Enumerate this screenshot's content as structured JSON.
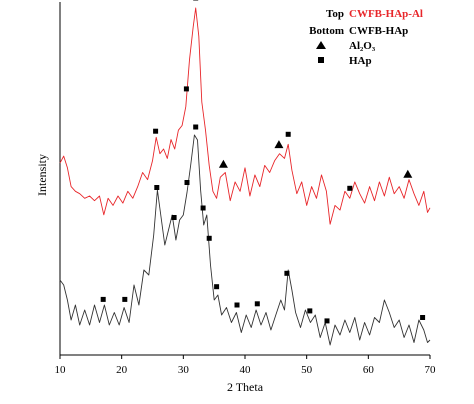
{
  "chart_data": {
    "type": "line",
    "xlabel": "2 Theta",
    "ylabel": "Intensity",
    "xlim": [
      10,
      70
    ],
    "x_ticks": [
      10,
      20,
      30,
      40,
      50,
      60,
      70
    ],
    "y_ticks_shown": false,
    "grid": false,
    "legend_position": "top-right",
    "colors": {
      "top": "#e8262a",
      "bottom": "#333333",
      "markers": "#000000"
    },
    "legend": {
      "rows": [
        {
          "label": "Top",
          "text": "CWFB-HAp-Al",
          "color": "#e8262a"
        },
        {
          "label": "Bottom",
          "text": "CWFB-HAp",
          "color": "#000000"
        }
      ],
      "markers": [
        {
          "symbol": "triangle",
          "text": "Al₂O₃"
        },
        {
          "symbol": "square",
          "text": "HAp"
        }
      ]
    },
    "series": [
      {
        "name": "CWFB-HAp-Al",
        "position": "top",
        "color": "#e8262a",
        "points": [
          [
            10,
            0.34
          ],
          [
            10.6,
            0.37
          ],
          [
            11.2,
            0.32
          ],
          [
            11.8,
            0.24
          ],
          [
            12.5,
            0.22
          ],
          [
            13.2,
            0.21
          ],
          [
            14,
            0.19
          ],
          [
            14.8,
            0.2
          ],
          [
            15.6,
            0.18
          ],
          [
            16.4,
            0.2
          ],
          [
            17.1,
            0.12
          ],
          [
            17.8,
            0.19
          ],
          [
            18.6,
            0.16
          ],
          [
            19.4,
            0.2
          ],
          [
            20.2,
            0.17
          ],
          [
            21,
            0.22
          ],
          [
            21.8,
            0.19
          ],
          [
            22.6,
            0.24
          ],
          [
            23.4,
            0.3
          ],
          [
            24.2,
            0.27
          ],
          [
            25,
            0.35
          ],
          [
            25.6,
            0.45
          ],
          [
            26.2,
            0.38
          ],
          [
            26.8,
            0.4
          ],
          [
            27.4,
            0.36
          ],
          [
            28,
            0.44
          ],
          [
            28.6,
            0.4
          ],
          [
            29.2,
            0.48
          ],
          [
            29.8,
            0.5
          ],
          [
            30.4,
            0.58
          ],
          [
            31,
            0.78
          ],
          [
            31.6,
            0.92
          ],
          [
            32,
            1.0
          ],
          [
            32.5,
            0.88
          ],
          [
            33,
            0.6
          ],
          [
            33.6,
            0.48
          ],
          [
            34.2,
            0.33
          ],
          [
            34.8,
            0.22
          ],
          [
            35.4,
            0.19
          ],
          [
            36,
            0.28
          ],
          [
            36.8,
            0.3
          ],
          [
            37.6,
            0.18
          ],
          [
            38.4,
            0.26
          ],
          [
            39.2,
            0.22
          ],
          [
            40,
            0.32
          ],
          [
            40.8,
            0.2
          ],
          [
            41.6,
            0.29
          ],
          [
            42.4,
            0.24
          ],
          [
            43.2,
            0.33
          ],
          [
            44,
            0.3
          ],
          [
            44.8,
            0.35
          ],
          [
            45.6,
            0.38
          ],
          [
            46.4,
            0.36
          ],
          [
            47,
            0.42
          ],
          [
            47.6,
            0.31
          ],
          [
            48.4,
            0.21
          ],
          [
            49.2,
            0.26
          ],
          [
            50,
            0.16
          ],
          [
            50.8,
            0.24
          ],
          [
            51.6,
            0.19
          ],
          [
            52.4,
            0.29
          ],
          [
            53.2,
            0.22
          ],
          [
            53.8,
            0.08
          ],
          [
            54.6,
            0.16
          ],
          [
            55.4,
            0.14
          ],
          [
            56.2,
            0.22
          ],
          [
            57,
            0.19
          ],
          [
            57.8,
            0.26
          ],
          [
            58.6,
            0.21
          ],
          [
            59.4,
            0.17
          ],
          [
            60.2,
            0.24
          ],
          [
            61,
            0.18
          ],
          [
            61.8,
            0.26
          ],
          [
            62.6,
            0.2
          ],
          [
            63.4,
            0.28
          ],
          [
            64.2,
            0.21
          ],
          [
            65,
            0.24
          ],
          [
            65.8,
            0.19
          ],
          [
            66.6,
            0.27
          ],
          [
            67.4,
            0.21
          ],
          [
            68.2,
            0.16
          ],
          [
            69,
            0.22
          ],
          [
            69.6,
            0.13
          ],
          [
            70,
            0.15
          ]
        ]
      },
      {
        "name": "CWFB-HAp",
        "position": "bottom",
        "color": "#333333",
        "points": [
          [
            10,
            0.3
          ],
          [
            10.6,
            0.28
          ],
          [
            11.2,
            0.22
          ],
          [
            11.8,
            0.14
          ],
          [
            12.5,
            0.2
          ],
          [
            13.2,
            0.12
          ],
          [
            14,
            0.18
          ],
          [
            14.8,
            0.12
          ],
          [
            15.6,
            0.2
          ],
          [
            16.4,
            0.13
          ],
          [
            17.2,
            0.2
          ],
          [
            18,
            0.12
          ],
          [
            18.8,
            0.17
          ],
          [
            19.6,
            0.12
          ],
          [
            20.4,
            0.19
          ],
          [
            21.2,
            0.13
          ],
          [
            22,
            0.28
          ],
          [
            22.8,
            0.2
          ],
          [
            23.6,
            0.34
          ],
          [
            24.4,
            0.32
          ],
          [
            25.2,
            0.48
          ],
          [
            25.8,
            0.66
          ],
          [
            26.4,
            0.55
          ],
          [
            27,
            0.44
          ],
          [
            27.6,
            0.5
          ],
          [
            28.2,
            0.56
          ],
          [
            28.8,
            0.46
          ],
          [
            29.4,
            0.54
          ],
          [
            30,
            0.56
          ],
          [
            30.6,
            0.65
          ],
          [
            31.2,
            0.76
          ],
          [
            31.8,
            0.88
          ],
          [
            32.3,
            0.86
          ],
          [
            32.8,
            0.66
          ],
          [
            33.3,
            0.52
          ],
          [
            33.8,
            0.56
          ],
          [
            34.4,
            0.36
          ],
          [
            35,
            0.22
          ],
          [
            35.6,
            0.24
          ],
          [
            36.2,
            0.16
          ],
          [
            37,
            0.19
          ],
          [
            37.8,
            0.13
          ],
          [
            38.6,
            0.17
          ],
          [
            39.4,
            0.09
          ],
          [
            40.2,
            0.16
          ],
          [
            41,
            0.11
          ],
          [
            41.8,
            0.18
          ],
          [
            42.6,
            0.12
          ],
          [
            43.4,
            0.17
          ],
          [
            44.2,
            0.1
          ],
          [
            45,
            0.16
          ],
          [
            45.8,
            0.22
          ],
          [
            46.4,
            0.18
          ],
          [
            47,
            0.34
          ],
          [
            47.6,
            0.26
          ],
          [
            48.2,
            0.17
          ],
          [
            49,
            0.11
          ],
          [
            49.8,
            0.18
          ],
          [
            50.6,
            0.13
          ],
          [
            51.4,
            0.16
          ],
          [
            52.2,
            0.07
          ],
          [
            53,
            0.13
          ],
          [
            53.8,
            0.04
          ],
          [
            54.6,
            0.12
          ],
          [
            55.4,
            0.08
          ],
          [
            56.2,
            0.14
          ],
          [
            57,
            0.09
          ],
          [
            57.8,
            0.15
          ],
          [
            58.6,
            0.06
          ],
          [
            59.4,
            0.13
          ],
          [
            60.2,
            0.08
          ],
          [
            61,
            0.15
          ],
          [
            61.8,
            0.13
          ],
          [
            62.6,
            0.22
          ],
          [
            63.4,
            0.17
          ],
          [
            64.2,
            0.11
          ],
          [
            65,
            0.14
          ],
          [
            65.8,
            0.07
          ],
          [
            66.6,
            0.12
          ],
          [
            67.4,
            0.05
          ],
          [
            68.2,
            0.14
          ],
          [
            69,
            0.1
          ],
          [
            69.6,
            0.05
          ],
          [
            70,
            0.06
          ]
        ]
      }
    ],
    "annotations": [
      {
        "series": "top",
        "symbol": "square",
        "x": 25.5
      },
      {
        "series": "top",
        "symbol": "square",
        "x": 30.5
      },
      {
        "series": "top",
        "symbol": "square",
        "x": 32
      },
      {
        "series": "top",
        "symbol": "triangle",
        "x": 36.5
      },
      {
        "series": "top",
        "symbol": "triangle",
        "x": 45.5
      },
      {
        "series": "top",
        "symbol": "square",
        "x": 47
      },
      {
        "series": "top",
        "symbol": "square",
        "x": 57
      },
      {
        "series": "top",
        "symbol": "triangle",
        "x": 66.4
      },
      {
        "series": "bottom",
        "symbol": "square",
        "x": 17
      },
      {
        "series": "bottom",
        "symbol": "square",
        "x": 20.5
      },
      {
        "series": "bottom",
        "symbol": "square",
        "x": 25.7
      },
      {
        "series": "bottom",
        "symbol": "square",
        "x": 28.5
      },
      {
        "series": "bottom",
        "symbol": "square",
        "x": 30.6
      },
      {
        "series": "bottom",
        "symbol": "square",
        "x": 32
      },
      {
        "series": "bottom",
        "symbol": "square",
        "x": 33.2
      },
      {
        "series": "bottom",
        "symbol": "square",
        "x": 34.2
      },
      {
        "series": "bottom",
        "symbol": "square",
        "x": 35.4
      },
      {
        "series": "bottom",
        "symbol": "square",
        "x": 38.7
      },
      {
        "series": "bottom",
        "symbol": "square",
        "x": 42
      },
      {
        "series": "bottom",
        "symbol": "square",
        "x": 46.8
      },
      {
        "series": "bottom",
        "symbol": "square",
        "x": 50.5
      },
      {
        "series": "bottom",
        "symbol": "square",
        "x": 53.3
      },
      {
        "series": "bottom",
        "symbol": "square",
        "x": 68.8
      }
    ]
  }
}
